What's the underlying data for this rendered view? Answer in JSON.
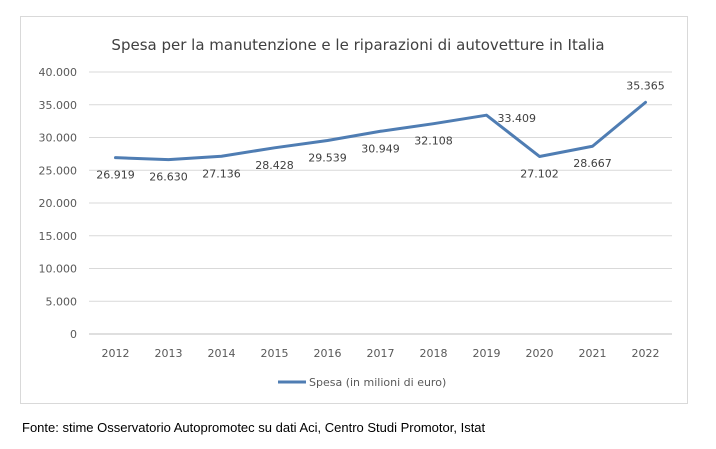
{
  "chart_data": {
    "type": "line",
    "title": "Spesa per la manutenzione e le riparazioni di autovetture in Italia",
    "categories": [
      "2012",
      "2013",
      "2014",
      "2015",
      "2016",
      "2017",
      "2018",
      "2019",
      "2020",
      "2021",
      "2022"
    ],
    "series": [
      {
        "name": "Spesa (in milioni di euro)",
        "values": [
          26919,
          26630,
          27136,
          28428,
          29539,
          30949,
          32108,
          33409,
          27102,
          28667,
          35365
        ],
        "labels": [
          "26.919",
          "26.630",
          "27.136",
          "28.428",
          "29.539",
          "30.949",
          "32.108",
          "33.409",
          "27.102",
          "28.667",
          "35.365"
        ],
        "color": "#4f7db3"
      }
    ],
    "y_ticks": [
      "0",
      "5.000",
      "10.000",
      "15.000",
      "20.000",
      "25.000",
      "30.000",
      "35.000",
      "40.000"
    ],
    "ylim": [
      0,
      40000
    ],
    "grid": true,
    "legend_position": "bottom"
  },
  "source_note": "Fonte: stime Osservatorio Autopromotec su dati Aci, Centro Studi Promotor, Istat"
}
